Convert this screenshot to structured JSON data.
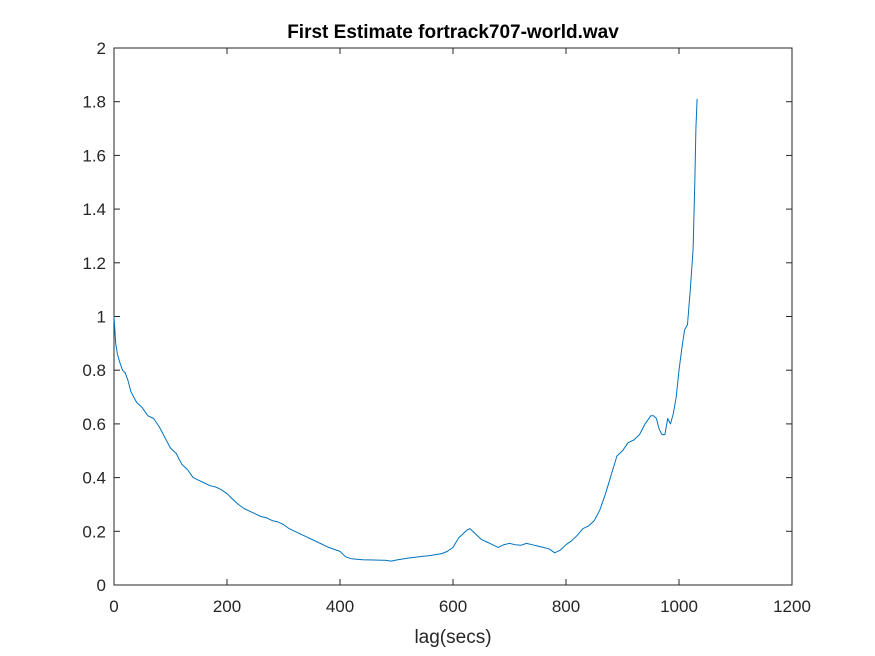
{
  "chart_data": {
    "type": "line",
    "title": "First Estimate fortrack707-world.wav",
    "xlabel": "lag(secs)",
    "ylabel": "",
    "xlim": [
      0,
      1200
    ],
    "ylim": [
      0,
      2
    ],
    "xticks": [
      "0",
      "200",
      "400",
      "600",
      "800",
      "1000",
      "1200"
    ],
    "yticks": [
      "0",
      "0.2",
      "0.4",
      "0.6",
      "0.8",
      "1",
      "1.2",
      "1.4",
      "1.6",
      "1.8",
      "2"
    ],
    "grid": false,
    "line_color": "#0072bd",
    "series": [
      {
        "name": "",
        "x": [
          0,
          3,
          6,
          10,
          15,
          20,
          25,
          30,
          40,
          50,
          60,
          70,
          80,
          90,
          100,
          110,
          120,
          130,
          140,
          150,
          160,
          170,
          180,
          190,
          200,
          210,
          220,
          230,
          240,
          250,
          260,
          270,
          280,
          290,
          300,
          310,
          320,
          340,
          360,
          380,
          400,
          410,
          420,
          440,
          460,
          480,
          490,
          500,
          520,
          540,
          560,
          580,
          590,
          600,
          610,
          620,
          625,
          630,
          640,
          650,
          660,
          670,
          680,
          690,
          700,
          710,
          720,
          730,
          740,
          750,
          760,
          770,
          780,
          790,
          800,
          810,
          820,
          830,
          840,
          850,
          860,
          870,
          880,
          890,
          900,
          910,
          920,
          930,
          940,
          950,
          955,
          960,
          965,
          970,
          975,
          980,
          985,
          990,
          995,
          1000,
          1005,
          1010,
          1015,
          1020,
          1025,
          1028,
          1030,
          1032
        ],
        "y": [
          1.0,
          0.9,
          0.86,
          0.83,
          0.8,
          0.79,
          0.76,
          0.72,
          0.68,
          0.66,
          0.63,
          0.62,
          0.59,
          0.55,
          0.51,
          0.49,
          0.45,
          0.43,
          0.4,
          0.39,
          0.38,
          0.37,
          0.365,
          0.355,
          0.34,
          0.32,
          0.3,
          0.285,
          0.275,
          0.265,
          0.255,
          0.25,
          0.24,
          0.235,
          0.225,
          0.21,
          0.2,
          0.18,
          0.16,
          0.14,
          0.125,
          0.105,
          0.098,
          0.094,
          0.093,
          0.092,
          0.089,
          0.093,
          0.1,
          0.105,
          0.11,
          0.117,
          0.125,
          0.14,
          0.175,
          0.195,
          0.205,
          0.21,
          0.19,
          0.17,
          0.16,
          0.15,
          0.14,
          0.15,
          0.155,
          0.15,
          0.148,
          0.155,
          0.15,
          0.145,
          0.14,
          0.135,
          0.12,
          0.13,
          0.15,
          0.165,
          0.185,
          0.21,
          0.22,
          0.24,
          0.28,
          0.34,
          0.41,
          0.48,
          0.5,
          0.53,
          0.54,
          0.56,
          0.6,
          0.63,
          0.63,
          0.62,
          0.58,
          0.56,
          0.56,
          0.62,
          0.6,
          0.64,
          0.7,
          0.8,
          0.88,
          0.95,
          0.97,
          1.1,
          1.25,
          1.5,
          1.7,
          1.81
        ]
      }
    ]
  }
}
